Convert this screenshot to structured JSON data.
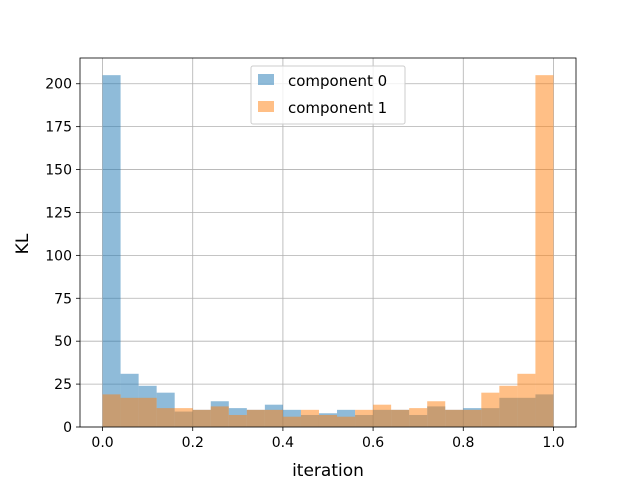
{
  "chart_data": {
    "type": "bar",
    "subtype": "histogram",
    "title": "",
    "xlabel": "iteration",
    "ylabel": "KL",
    "xlim": [
      -0.05,
      1.05
    ],
    "ylim": [
      0,
      215
    ],
    "xticks": [
      0.0,
      0.2,
      0.4,
      0.6,
      0.8,
      1.0
    ],
    "xtick_labels": [
      "0.0",
      "0.2",
      "0.4",
      "0.6",
      "0.8",
      "1.0"
    ],
    "yticks": [
      0,
      25,
      50,
      75,
      100,
      125,
      150,
      175,
      200
    ],
    "ytick_labels": [
      "0",
      "25",
      "50",
      "75",
      "100",
      "125",
      "150",
      "175",
      "200"
    ],
    "grid": true,
    "legend_position": "top-center",
    "bin_edges": [
      0.0,
      0.04,
      0.08,
      0.12,
      0.16,
      0.2,
      0.24,
      0.28,
      0.32,
      0.36,
      0.4,
      0.44,
      0.48,
      0.52,
      0.56,
      0.6,
      0.64,
      0.68,
      0.72,
      0.76,
      0.8,
      0.84,
      0.88,
      0.92,
      0.96,
      1.0
    ],
    "series": [
      {
        "name": "component 0",
        "color": "#1f77b4",
        "values": [
          205,
          31,
          24,
          20,
          9,
          10,
          15,
          11,
          10,
          13,
          10,
          7,
          8,
          10,
          7,
          10,
          10,
          7,
          12,
          10,
          11,
          11,
          17,
          17,
          19
        ]
      },
      {
        "name": "component 1",
        "color": "#ff7f0e",
        "values": [
          19,
          17,
          17,
          11,
          11,
          10,
          12,
          7,
          10,
          10,
          6,
          10,
          7,
          6,
          10,
          13,
          10,
          11,
          15,
          10,
          10,
          20,
          24,
          31,
          205
        ]
      }
    ]
  }
}
